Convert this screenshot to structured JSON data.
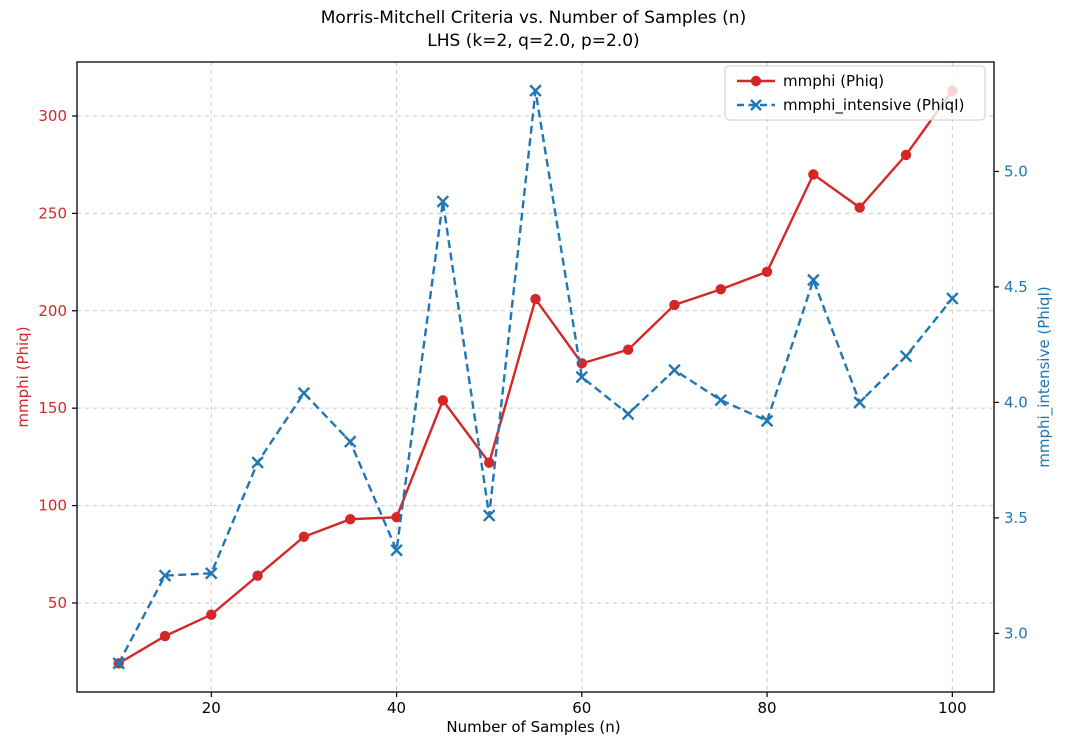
{
  "chart_data": {
    "type": "line",
    "title": "Morris-Mitchell Criteria vs. Number of Samples (n)",
    "subtitle": "LHS (k=2, q=2.0, p=2.0)",
    "xlabel": "Number of Samples (n)",
    "ylabel_left": "mmphi (Phiq)",
    "ylabel_right": "mmphi_intensive (PhiqI)",
    "grid": true,
    "grid_style": "dashed",
    "grid_color": "#c9c9c9",
    "x": [
      10,
      15,
      20,
      25,
      30,
      35,
      40,
      45,
      50,
      55,
      60,
      65,
      70,
      75,
      80,
      85,
      90,
      95,
      100
    ],
    "series": [
      {
        "name": "mmphi (Phiq)",
        "axis": "left",
        "color": "#d62728",
        "line_style": "solid",
        "marker": "circle",
        "values": [
          19,
          33,
          44,
          64,
          84,
          93,
          94,
          154,
          122,
          206,
          173,
          180,
          203,
          211,
          220,
          270,
          253,
          280,
          313
        ]
      },
      {
        "name": "mmphi_intensive (PhiqI)",
        "axis": "right",
        "color": "#1f77b4",
        "line_style": "dashed",
        "marker": "x",
        "values": [
          2.87,
          3.25,
          3.26,
          3.74,
          4.04,
          3.83,
          3.36,
          4.87,
          3.51,
          5.35,
          4.11,
          3.95,
          4.14,
          4.01,
          3.92,
          4.53,
          4.0,
          4.2,
          4.45
        ]
      }
    ],
    "xlim": [
      5.5,
      104.5
    ],
    "ylim_left": [
      4.3,
      327.7
    ],
    "ylim_right": [
      2.746,
      5.474
    ],
    "x_ticks": [
      {
        "value": 20,
        "label": "20"
      },
      {
        "value": 40,
        "label": "40"
      },
      {
        "value": 60,
        "label": "60"
      },
      {
        "value": 80,
        "label": "80"
      },
      {
        "value": 100,
        "label": "100"
      }
    ],
    "y_ticks_left": [
      {
        "value": 50,
        "label": "50"
      },
      {
        "value": 100,
        "label": "100"
      },
      {
        "value": 150,
        "label": "150"
      },
      {
        "value": 200,
        "label": "200"
      },
      {
        "value": 250,
        "label": "250"
      },
      {
        "value": 300,
        "label": "300"
      }
    ],
    "y_ticks_right": [
      {
        "value": 3.0,
        "label": "3.0"
      },
      {
        "value": 3.5,
        "label": "3.5"
      },
      {
        "value": 4.0,
        "label": "4.0"
      },
      {
        "value": 4.5,
        "label": "4.5"
      },
      {
        "value": 5.0,
        "label": "5.0"
      }
    ],
    "legend": {
      "position": "upper right"
    },
    "tick_label_color_left": "#d62728",
    "tick_label_color_right": "#1f77b4",
    "tick_label_color_x": "#000000",
    "spine_color": "#000000"
  }
}
